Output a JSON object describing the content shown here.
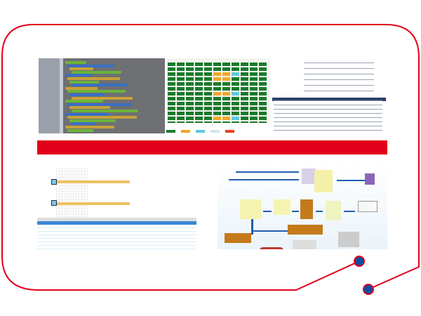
{
  "theme": {
    "frame_color": "#e2001a",
    "dot_color": "#0b4ea2",
    "accent_bar": "#e2001a",
    "block_colors": [
      "#6bb33a",
      "#3a6fc4",
      "#c9a03a"
    ],
    "grid_status_colors": {
      "normal": "#1a7a2c",
      "warning": "#f2a62a",
      "info": "#5fc9e0",
      "idle": "#cfe7f0",
      "alarm": "#e2441f"
    }
  },
  "panels": [
    {
      "name": "visual-block-programming-screenshot"
    },
    {
      "name": "equipment-status-grid-screenshot"
    },
    {
      "name": "code-editor-screenshot"
    },
    {
      "name": "production-schedule-screenshot"
    },
    {
      "name": "warehouse-logistics-flow-diagram"
    }
  ],
  "icons": [
    "truck-icon",
    "forklift-icon",
    "barcode-icon",
    "computer-icon",
    "warehouse-box-icon"
  ]
}
